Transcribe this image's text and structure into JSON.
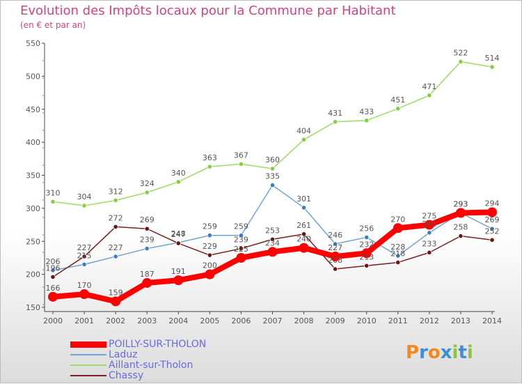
{
  "title": "Evolution des Impôts locaux pour la Commune par Habitant",
  "subtitle": "(en € et par an)",
  "logo": {
    "text": "Proxiti",
    "letters": [
      "P",
      "r",
      "o",
      "x",
      "i",
      "t",
      "i"
    ],
    "colors": [
      "#f08a1c",
      "#3a8fd8",
      "#f08a1c",
      "#3a8fd8",
      "#8cc63f",
      "#3a8fd8",
      "#8cc63f"
    ]
  },
  "colors": {
    "title": "#d2457a",
    "axis": "#444444",
    "grid": "#cccccc",
    "label": "#555555"
  },
  "chart_data": {
    "type": "line",
    "title": "Evolution des Impôts locaux pour la Commune par Habitant",
    "subtitle": "(en € et par an)",
    "xlabel": "",
    "ylabel": "",
    "x": [
      "2000",
      "2001",
      "2002",
      "2003",
      "2004",
      "2005",
      "2006",
      "2007",
      "2008",
      "2009",
      "2010",
      "2011",
      "2012",
      "2013",
      "2014"
    ],
    "ylim": [
      150,
      550
    ],
    "yticks": [
      "150",
      "200",
      "250",
      "300",
      "350",
      "400",
      "450",
      "500",
      "550"
    ],
    "legend_position": "bottom-left",
    "series": [
      {
        "name": "POILLY-SUR-THOLON",
        "color": "#ff0000",
        "marker": "#ff0000",
        "values": [
          166,
          170,
          159,
          187,
          191,
          200,
          225,
          234,
          240,
          227,
          232,
          270,
          275,
          293,
          294
        ],
        "labels": [
          "166",
          "170",
          "159",
          "187",
          "191",
          "200",
          "225",
          "234",
          "240",
          "227",
          "232",
          "270",
          "275",
          "293",
          "294"
        ]
      },
      {
        "name": "Laduz",
        "color": "#6fa3d4",
        "marker": "#3a7dc4",
        "values": [
          206,
          215,
          227,
          239,
          248,
          259,
          259,
          335,
          301,
          246,
          256,
          228,
          263,
          293,
          269
        ],
        "labels": [
          "206",
          "215",
          "227",
          "239",
          "248",
          "259",
          "259",
          "335",
          "301",
          "246",
          "256",
          "228",
          "263",
          "293",
          "269"
        ]
      },
      {
        "name": "Aillant-sur-Tholon",
        "color": "#99dd66",
        "marker": "#88cc44",
        "values": [
          310,
          304,
          312,
          324,
          340,
          363,
          367,
          360,
          404,
          431,
          433,
          451,
          471,
          522,
          514
        ],
        "labels": [
          "310",
          "304",
          "312",
          "324",
          "340",
          "363",
          "367",
          "360",
          "404",
          "431",
          "433",
          "451",
          "471",
          "522",
          "514"
        ]
      },
      {
        "name": "Chassy",
        "color": "#7a1f1f",
        "marker": "#6b1414",
        "values": [
          196,
          227,
          272,
          269,
          247,
          229,
          239,
          253,
          261,
          208,
          213,
          218,
          233,
          258,
          252
        ],
        "labels": [
          "196",
          "227",
          "272",
          "269",
          "247",
          "229",
          "239",
          "253",
          "261",
          "208",
          "213",
          "218",
          "233",
          "258",
          "252"
        ]
      }
    ]
  }
}
